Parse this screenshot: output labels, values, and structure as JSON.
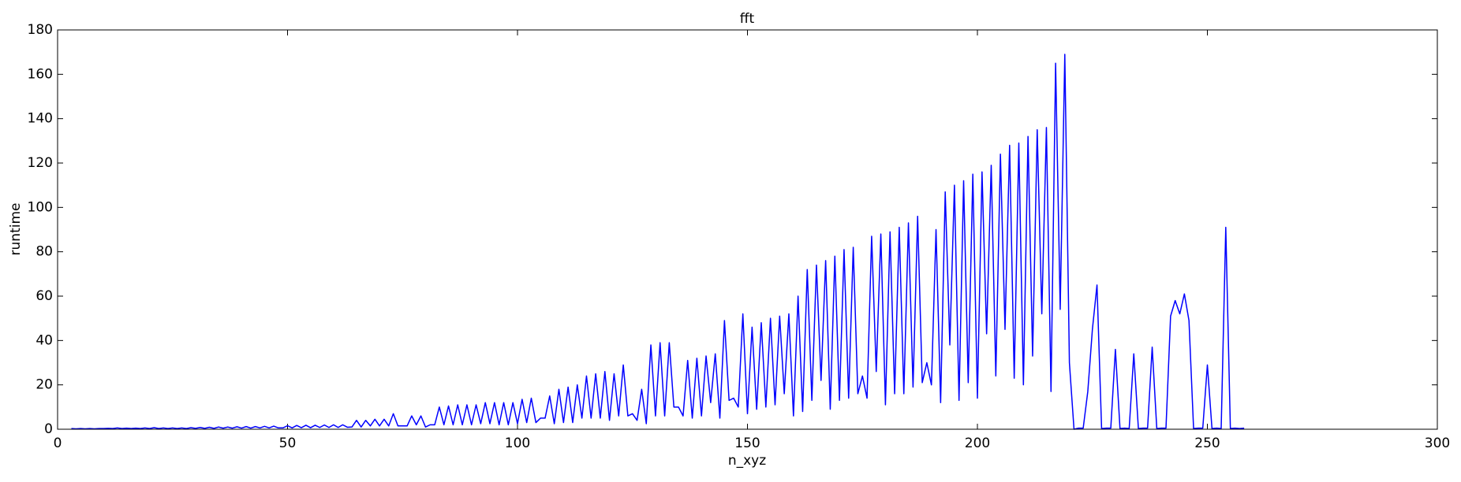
{
  "chart_data": {
    "type": "line",
    "title": "fft",
    "x_label": "n_xyz",
    "y_label": "runtime",
    "xlim": [
      0,
      300
    ],
    "ylim": [
      0,
      180
    ],
    "xticks": [
      0,
      50,
      100,
      150,
      200,
      250,
      300
    ],
    "yticks": [
      0,
      20,
      40,
      60,
      80,
      100,
      120,
      140,
      160,
      180
    ],
    "grid": false,
    "x": [
      3,
      4,
      5,
      6,
      7,
      8,
      9,
      10,
      11,
      12,
      13,
      14,
      15,
      16,
      17,
      18,
      19,
      20,
      21,
      22,
      23,
      24,
      25,
      26,
      27,
      28,
      29,
      30,
      31,
      32,
      33,
      34,
      35,
      36,
      37,
      38,
      39,
      40,
      41,
      42,
      43,
      44,
      45,
      46,
      47,
      48,
      49,
      50,
      51,
      52,
      53,
      54,
      55,
      56,
      57,
      58,
      59,
      60,
      61,
      62,
      63,
      64,
      65,
      66,
      67,
      68,
      69,
      70,
      71,
      72,
      73,
      74,
      75,
      76,
      77,
      78,
      79,
      80,
      81,
      82,
      83,
      84,
      85,
      86,
      87,
      88,
      89,
      90,
      91,
      92,
      93,
      94,
      95,
      96,
      97,
      98,
      99,
      100,
      101,
      102,
      103,
      104,
      105,
      106,
      107,
      108,
      109,
      110,
      111,
      112,
      113,
      114,
      115,
      116,
      117,
      118,
      119,
      120,
      121,
      122,
      123,
      124,
      125,
      126,
      127,
      128,
      129,
      130,
      131,
      132,
      133,
      134,
      135,
      136,
      137,
      138,
      139,
      140,
      141,
      142,
      143,
      144,
      145,
      146,
      147,
      148,
      149,
      150,
      151,
      152,
      153,
      154,
      155,
      156,
      157,
      158,
      159,
      160,
      161,
      162,
      163,
      164,
      165,
      166,
      167,
      168,
      169,
      170,
      171,
      172,
      173,
      174,
      175,
      176,
      177,
      178,
      179,
      180,
      181,
      182,
      183,
      184,
      185,
      186,
      187,
      188,
      189,
      190,
      191,
      192,
      193,
      194,
      195,
      196,
      197,
      198,
      199,
      200,
      201,
      202,
      203,
      204,
      205,
      206,
      207,
      208,
      209,
      210,
      211,
      212,
      213,
      214,
      215,
      216,
      217,
      218,
      219,
      220,
      221,
      222,
      223,
      224,
      225,
      226,
      227,
      228,
      229,
      230,
      231,
      232,
      233,
      234,
      235,
      236,
      237,
      238,
      239,
      240,
      241,
      242,
      243,
      244,
      245,
      246,
      247,
      248,
      249,
      250,
      251,
      252,
      253,
      254,
      255,
      256,
      257,
      258
    ],
    "series": [
      {
        "name": "fft",
        "color": "#0000ff",
        "values": [
          0.3,
          0.2,
          0.3,
          0.2,
          0.3,
          0.2,
          0.3,
          0.3,
          0.4,
          0.3,
          0.6,
          0.3,
          0.5,
          0.3,
          0.5,
          0.3,
          0.6,
          0.3,
          0.7,
          0.3,
          0.6,
          0.3,
          0.6,
          0.3,
          0.6,
          0.3,
          0.7,
          0.4,
          0.8,
          0.4,
          0.9,
          0.4,
          1,
          0.5,
          1,
          0.5,
          1.1,
          0.5,
          1.2,
          0.5,
          1.2,
          0.6,
          1.3,
          0.6,
          1.4,
          0.6,
          0.6,
          1.6,
          0.6,
          1.7,
          0.7,
          1.8,
          0.7,
          1.8,
          0.8,
          1.9,
          0.8,
          2,
          0.8,
          2,
          0.9,
          1,
          4,
          1,
          4,
          1.5,
          4.5,
          1.5,
          4.5,
          1.5,
          7,
          1.5,
          1.5,
          1.5,
          6,
          2,
          6,
          1,
          2,
          2,
          10,
          2,
          10.5,
          2,
          11,
          2,
          11,
          2,
          11,
          2.5,
          12,
          2.5,
          12,
          2,
          12,
          2,
          12,
          2.5,
          13.5,
          3,
          14,
          3,
          5,
          5,
          15,
          2.5,
          18,
          3,
          19,
          3,
          20,
          5,
          24,
          5,
          25,
          5,
          26,
          4,
          25,
          6,
          29,
          6,
          7,
          4,
          18,
          2.5,
          38,
          6,
          39,
          6,
          39,
          10,
          10,
          6,
          31,
          5,
          32,
          6,
          33,
          12,
          34,
          5,
          49,
          13,
          14,
          10,
          52,
          7,
          46,
          9,
          48,
          10,
          50,
          11,
          51,
          16,
          52,
          6,
          60,
          8,
          72,
          13,
          74,
          22,
          76,
          9,
          78,
          13,
          81,
          14,
          82,
          16,
          24,
          14,
          87,
          26,
          88,
          11,
          89,
          16,
          91,
          16,
          93,
          19,
          96,
          21,
          30,
          20,
          90,
          12,
          107,
          38,
          110,
          13,
          112,
          21,
          115,
          14,
          116,
          43,
          119,
          24,
          124,
          45,
          128,
          23,
          129,
          20,
          132,
          33,
          135,
          52,
          136,
          17,
          165,
          54,
          169,
          30,
          0,
          0.5,
          0.5,
          17,
          45,
          65,
          0.3,
          0.5,
          0.5,
          36,
          0.3,
          0.5,
          0.3,
          34,
          0.3,
          0.5,
          0.5,
          37,
          0.3,
          0.5,
          0.5,
          51,
          58,
          52,
          61,
          49,
          0.3,
          0.5,
          0.5,
          29,
          0.3,
          0.5,
          0.3,
          91,
          0.3,
          0.5,
          0.3,
          0.5
        ]
      }
    ]
  }
}
